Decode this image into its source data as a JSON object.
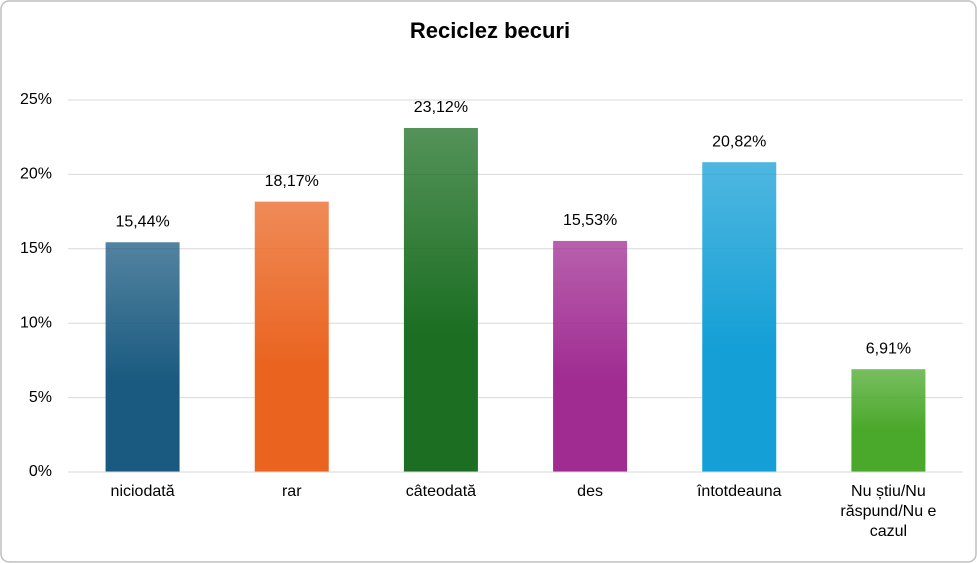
{
  "chart_data": {
    "type": "bar",
    "title": "Reciclez becuri",
    "categories": [
      "niciodată",
      "rar",
      "câteodată",
      "des",
      "întotdeauna",
      "Nu știu/Nu răspund/Nu e cazul"
    ],
    "values": [
      15.44,
      18.17,
      23.12,
      15.53,
      20.82,
      6.91
    ],
    "value_labels": [
      "15,44%",
      "18,17%",
      "23,12%",
      "15,53%",
      "20,82%",
      "6,91%"
    ],
    "colors": [
      "#1a5a80",
      "#ea6420",
      "#1b6e22",
      "#a02c92",
      "#149fd6",
      "#4aa82a"
    ],
    "ylim": [
      0,
      25
    ],
    "yticks": [
      {
        "value": 0,
        "label": "0%"
      },
      {
        "value": 5,
        "label": "5%"
      },
      {
        "value": 10,
        "label": "10%"
      },
      {
        "value": 15,
        "label": "15%"
      },
      {
        "value": 20,
        "label": "20%"
      },
      {
        "value": 25,
        "label": "25%"
      }
    ],
    "grid": true
  }
}
